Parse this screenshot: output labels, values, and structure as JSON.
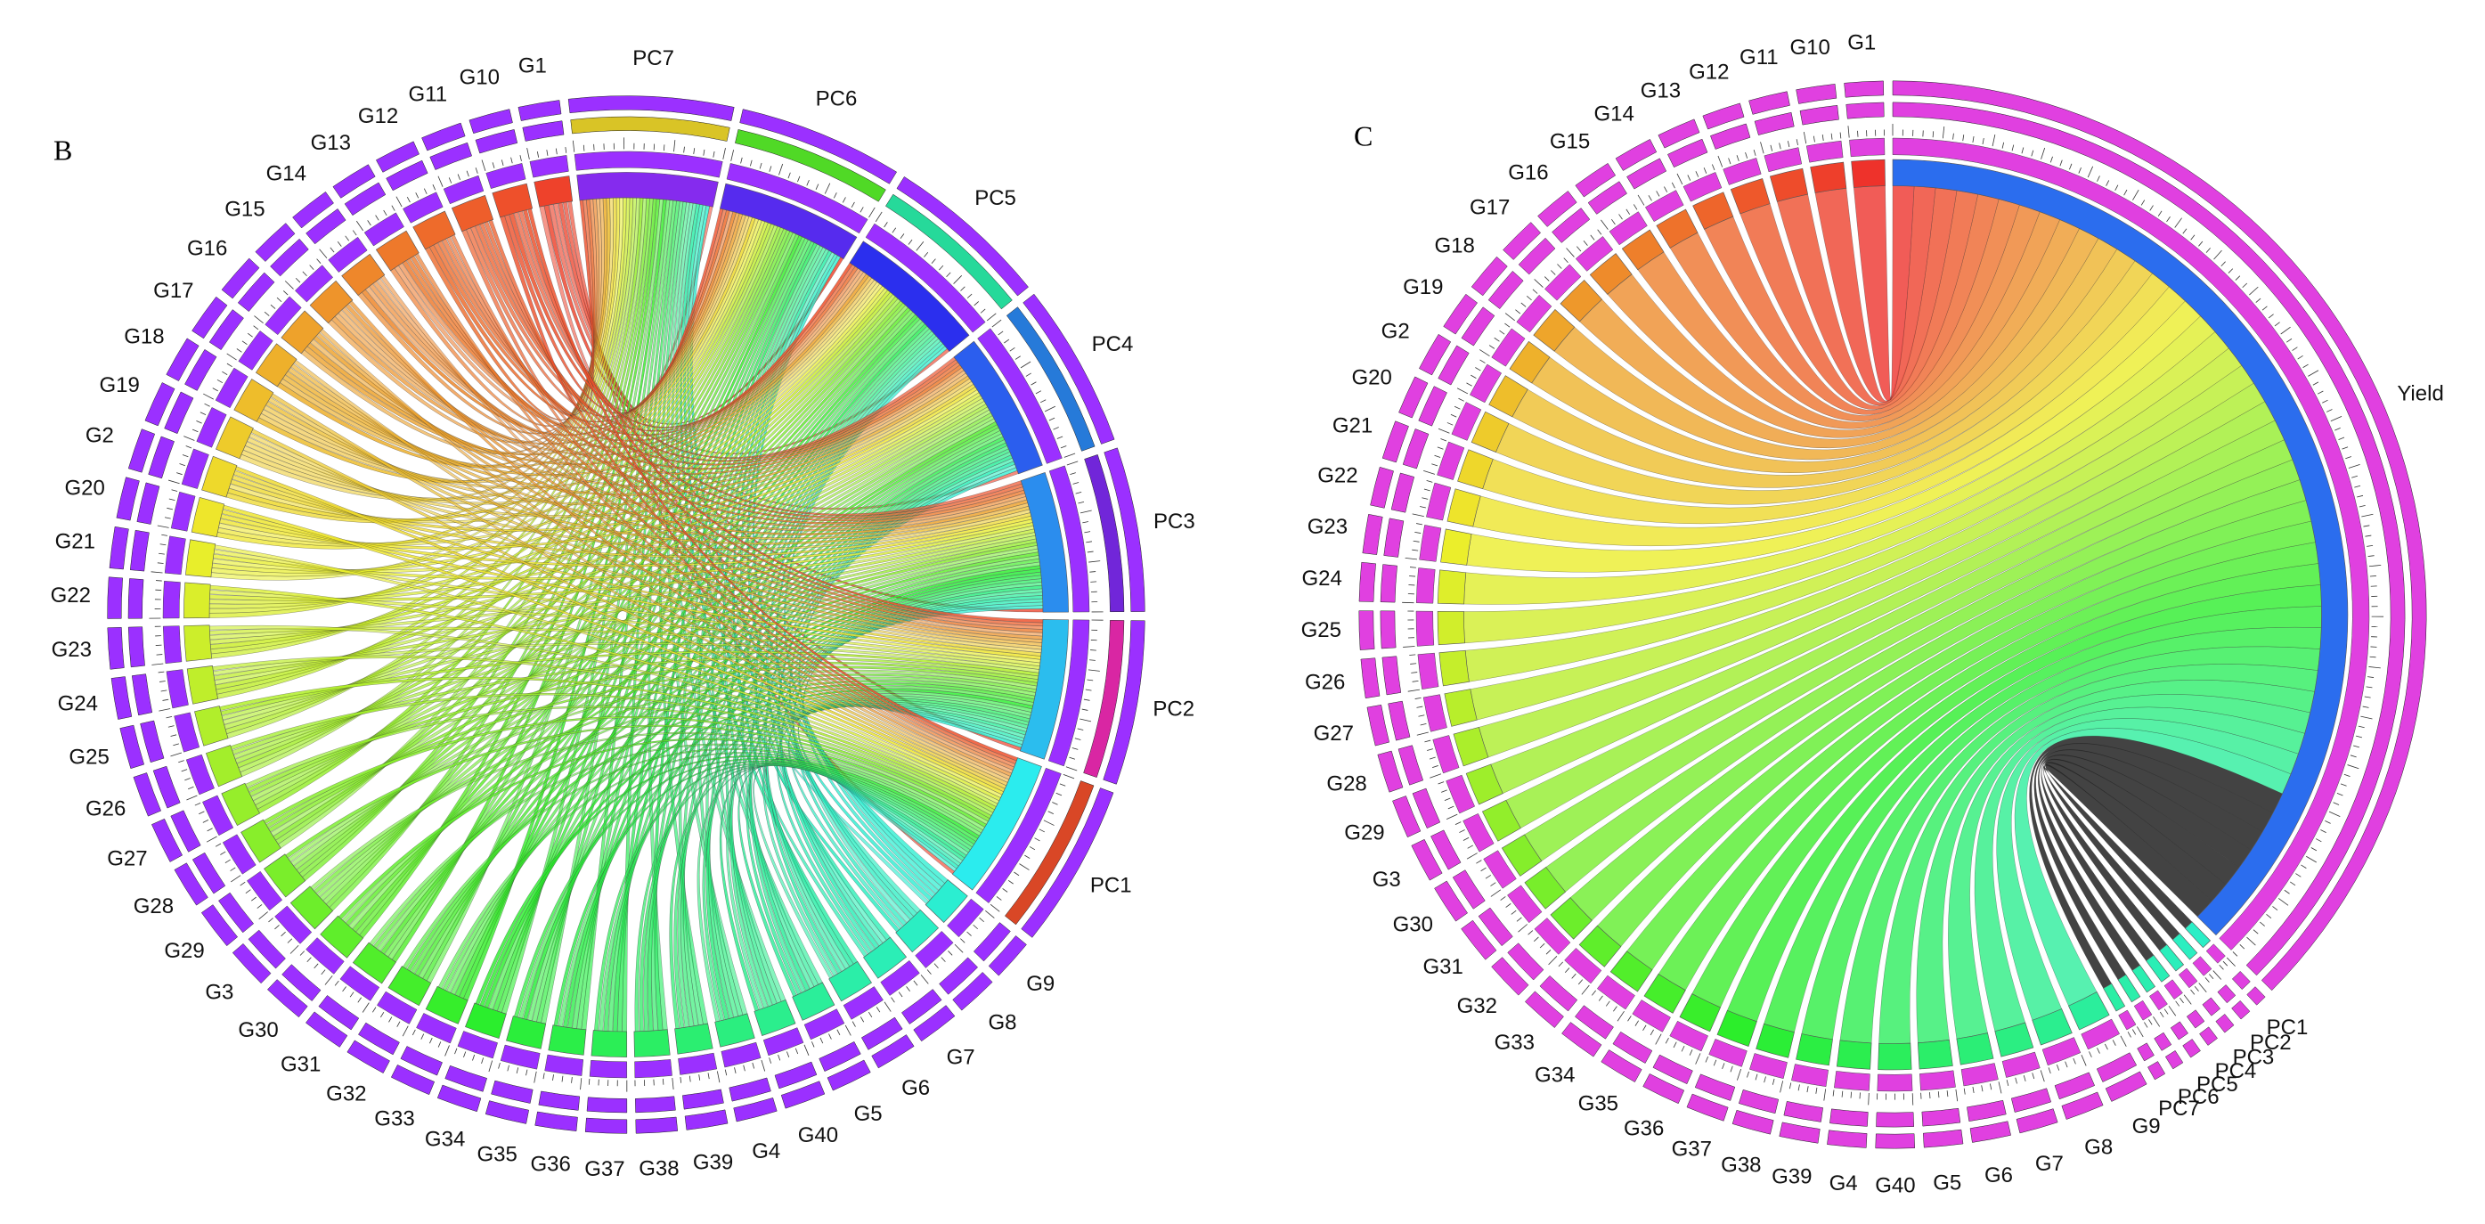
{
  "panels": [
    {
      "label": "B",
      "sectors": [
        "G1",
        "PC7",
        "PC6",
        "PC5",
        "PC4",
        "PC3",
        "PC2",
        "PC1",
        "G9",
        "G8",
        "G7",
        "G6",
        "G5",
        "G40",
        "G4",
        "G39",
        "G38",
        "G37",
        "G36",
        "G35",
        "G34",
        "G33",
        "G32",
        "G31",
        "G30",
        "G3",
        "G29",
        "G28",
        "G27",
        "G26",
        "G25",
        "G24",
        "G23",
        "G22",
        "G21",
        "G20",
        "G2",
        "G19",
        "G18",
        "G17",
        "G16",
        "G15",
        "G14",
        "G13",
        "G12",
        "G11",
        "G10"
      ]
    },
    {
      "label": "C",
      "sectors": [
        "Yield",
        "PC1",
        "PC2",
        "PC3",
        "PC4",
        "PC5",
        "PC6",
        "PC7",
        "G9",
        "G8",
        "G7",
        "G6",
        "G5",
        "G40",
        "G4",
        "G39",
        "G38",
        "G37",
        "G36",
        "G35",
        "G34",
        "G33",
        "G32",
        "G31",
        "G30",
        "G3",
        "G29",
        "G28",
        "G27",
        "G26",
        "G25",
        "G24",
        "G23",
        "G22",
        "G21",
        "G20",
        "G2",
        "G19",
        "G18",
        "G17",
        "G16",
        "G15",
        "G14",
        "G13",
        "G12",
        "G11",
        "G10",
        "G1"
      ]
    }
  ]
}
